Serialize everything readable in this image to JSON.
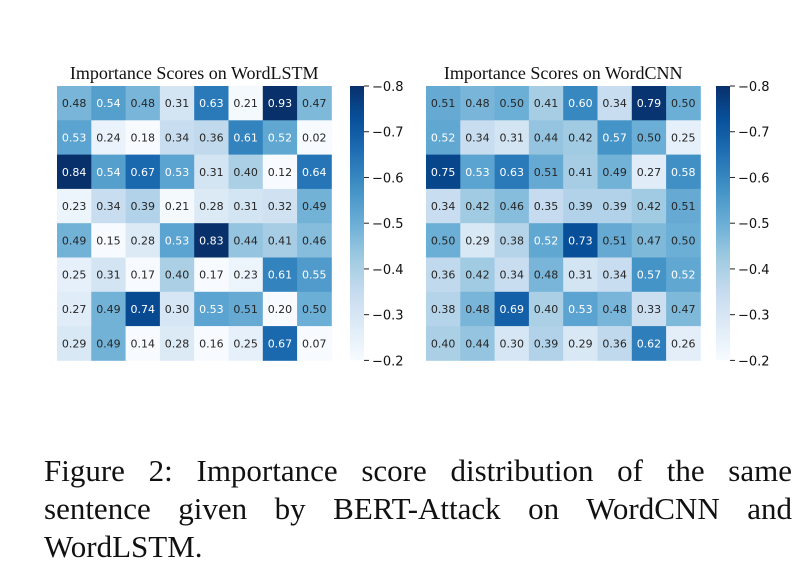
{
  "chart_data": [
    {
      "type": "heatmap",
      "title": "Importance Scores on WordLSTM",
      "colorbar_ticks": [
        "0.8",
        "0.7",
        "0.6",
        "0.5",
        "0.4",
        "0.3",
        "0.2"
      ],
      "vmin": 0.2,
      "vmax": 0.8,
      "colormap": [
        "#f7fbff",
        "#deebf7",
        "#c6dbef",
        "#9ecae1",
        "#6baed6",
        "#4292c6",
        "#2171b5",
        "#08519c",
        "#08306b"
      ],
      "values": [
        [
          0.48,
          0.54,
          0.48,
          0.31,
          0.63,
          0.21,
          0.93,
          0.47
        ],
        [
          0.53,
          0.24,
          0.18,
          0.34,
          0.36,
          0.61,
          0.52,
          0.02
        ],
        [
          0.84,
          0.54,
          0.67,
          0.53,
          0.31,
          0.4,
          0.12,
          0.64
        ],
        [
          0.23,
          0.34,
          0.39,
          0.21,
          0.28,
          0.31,
          0.32,
          0.49
        ],
        [
          0.49,
          0.15,
          0.28,
          0.53,
          0.83,
          0.44,
          0.41,
          0.46
        ],
        [
          0.25,
          0.31,
          0.17,
          0.4,
          0.17,
          0.23,
          0.61,
          0.55
        ],
        [
          0.27,
          0.49,
          0.74,
          0.3,
          0.53,
          0.51,
          0.2,
          0.5
        ],
        [
          0.29,
          0.49,
          0.14,
          0.28,
          0.16,
          0.25,
          0.67,
          0.07
        ]
      ]
    },
    {
      "type": "heatmap",
      "title": "Importance Scores on WordCNN",
      "colorbar_ticks": [
        "0.8",
        "0.7",
        "0.6",
        "0.5",
        "0.4",
        "0.3",
        "0.2"
      ],
      "vmin": 0.2,
      "vmax": 0.8,
      "colormap": [
        "#f7fbff",
        "#deebf7",
        "#c6dbef",
        "#9ecae1",
        "#6baed6",
        "#4292c6",
        "#2171b5",
        "#08519c",
        "#08306b"
      ],
      "values": [
        [
          0.51,
          0.48,
          0.5,
          0.41,
          0.6,
          0.34,
          0.79,
          0.5
        ],
        [
          0.52,
          0.34,
          0.31,
          0.44,
          0.42,
          0.57,
          0.5,
          0.25
        ],
        [
          0.75,
          0.53,
          0.63,
          0.51,
          0.41,
          0.49,
          0.27,
          0.58
        ],
        [
          0.34,
          0.42,
          0.46,
          0.35,
          0.39,
          0.39,
          0.42,
          0.51
        ],
        [
          0.5,
          0.29,
          0.38,
          0.52,
          0.73,
          0.51,
          0.47,
          0.5
        ],
        [
          0.36,
          0.42,
          0.34,
          0.48,
          0.31,
          0.34,
          0.57,
          0.52
        ],
        [
          0.38,
          0.48,
          0.69,
          0.4,
          0.53,
          0.48,
          0.33,
          0.47
        ],
        [
          0.4,
          0.44,
          0.3,
          0.39,
          0.29,
          0.36,
          0.62,
          0.26
        ]
      ]
    }
  ],
  "caption": "Figure 2: Importance score distribution of the same sentence given by BERT-Attack on WordCNN and WordLSTM."
}
